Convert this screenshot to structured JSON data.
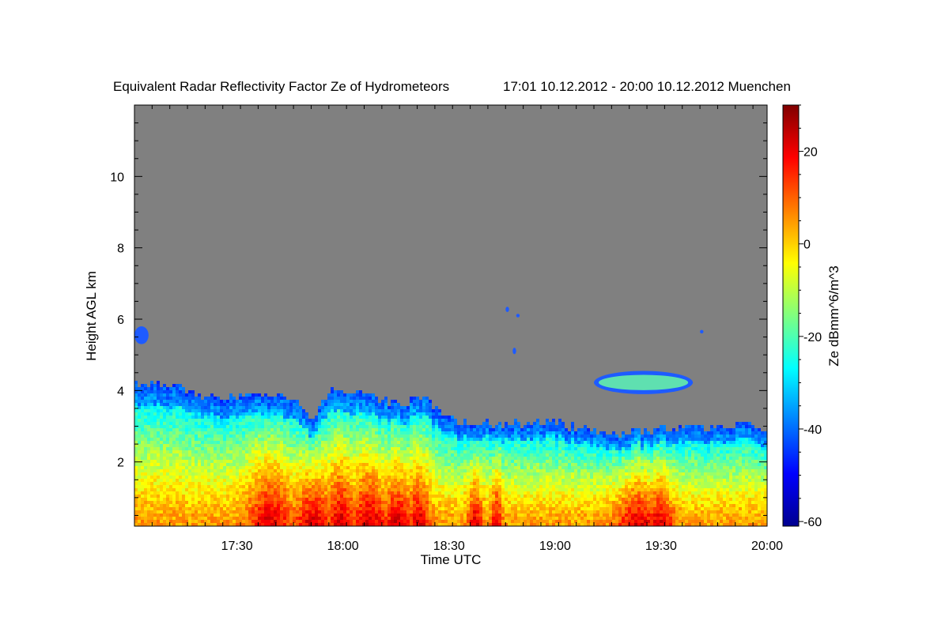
{
  "chart_data": {
    "type": "heatmap",
    "title": "Equivalent Radar Reflectivity Factor Ze of Hydrometeors",
    "subtitle": "17:01 10.12.2012 - 20:00 10.12.2012 Muenchen",
    "xlabel": "Time UTC",
    "ylabel": "Height AGL km",
    "colorbar_label": "Ze dBmm^6/m^3",
    "x_tick_labels": [
      "17:30",
      "18:00",
      "18:30",
      "19:00",
      "19:30",
      "20:00"
    ],
    "x_tick_values_min": [
      29,
      59,
      89,
      119,
      149,
      179
    ],
    "xlim_min": [
      0,
      179
    ],
    "y_tick_labels": [
      "2",
      "4",
      "6",
      "8",
      "10"
    ],
    "y_tick_values": [
      2,
      4,
      6,
      8,
      10
    ],
    "ylim": [
      0.2,
      12
    ],
    "colorbar_tick_labels": [
      "20",
      "0",
      "-20",
      "-40",
      "-60"
    ],
    "colorbar_tick_values": [
      20,
      0,
      -20,
      -40,
      -60
    ],
    "colorbar_range": [
      -61,
      30
    ],
    "colormap": "jet",
    "no_signal_color": "#808080",
    "echo_top_km": [
      {
        "t": 0,
        "h": 4.25
      },
      {
        "t": 10,
        "h": 4.2
      },
      {
        "t": 20,
        "h": 3.85
      },
      {
        "t": 30,
        "h": 3.9
      },
      {
        "t": 40,
        "h": 3.9
      },
      {
        "t": 45,
        "h": 3.7
      },
      {
        "t": 50,
        "h": 3.2
      },
      {
        "t": 55,
        "h": 4.1
      },
      {
        "t": 65,
        "h": 3.9
      },
      {
        "t": 75,
        "h": 3.6
      },
      {
        "t": 80,
        "h": 3.9
      },
      {
        "t": 88,
        "h": 3.3
      },
      {
        "t": 95,
        "h": 3.1
      },
      {
        "t": 105,
        "h": 3.1
      },
      {
        "t": 115,
        "h": 3.2
      },
      {
        "t": 125,
        "h": 3.0
      },
      {
        "t": 135,
        "h": 2.8
      },
      {
        "t": 145,
        "h": 2.95
      },
      {
        "t": 155,
        "h": 3.0
      },
      {
        "t": 165,
        "h": 3.05
      },
      {
        "t": 172,
        "h": 3.15
      },
      {
        "t": 179,
        "h": 2.9
      }
    ],
    "echo_patches": [
      {
        "t0": 0,
        "t1": 4,
        "h0": 5.3,
        "h1": 5.8
      },
      {
        "t0": 105,
        "t1": 106,
        "h0": 6.2,
        "h1": 6.35
      },
      {
        "t0": 108,
        "t1": 109,
        "h0": 6.05,
        "h1": 6.15
      },
      {
        "t0": 107,
        "t1": 108,
        "h0": 5.02,
        "h1": 5.2
      },
      {
        "t0": 130,
        "t1": 158,
        "h0": 3.9,
        "h1": 4.55
      },
      {
        "t0": 160,
        "t1": 161,
        "h0": 5.6,
        "h1": 5.7
      }
    ]
  }
}
